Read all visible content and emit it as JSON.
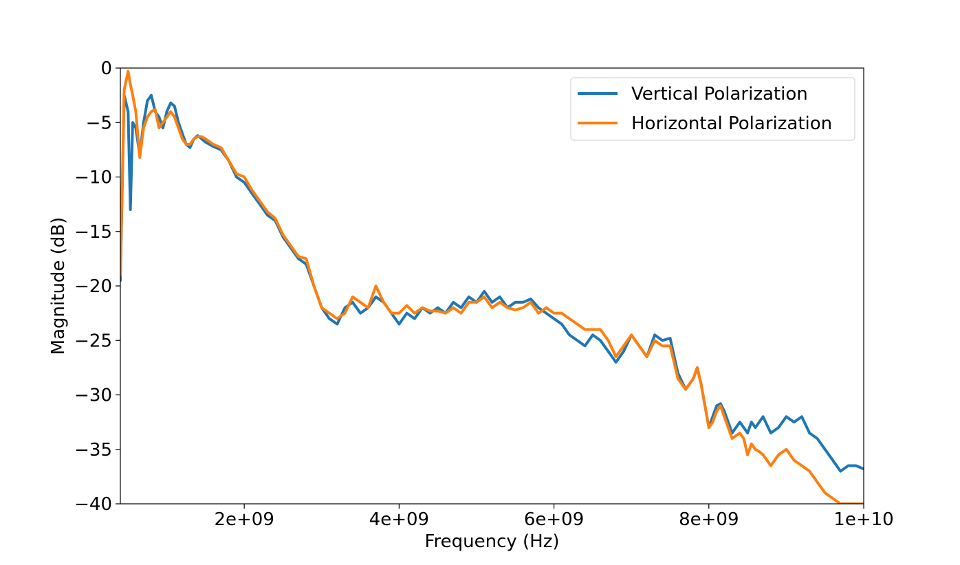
{
  "chart_data": {
    "type": "line",
    "title": "",
    "xlabel": "Frequency (Hz)",
    "ylabel": "Magnitude (dB)",
    "xlim": [
      400000000,
      10000000000
    ],
    "ylim": [
      -40,
      0
    ],
    "xticks": [
      2000000000,
      4000000000,
      6000000000,
      8000000000,
      10000000000
    ],
    "xtick_labels": [
      "2e+09",
      "4e+09",
      "6e+09",
      "8e+09",
      "1e+10"
    ],
    "yticks": [
      0,
      -5,
      -10,
      -15,
      -20,
      -25,
      -30,
      -35,
      -40
    ],
    "ytick_labels": [
      "0",
      "−5",
      "−10",
      "−15",
      "−20",
      "−25",
      "−30",
      "−35",
      "−40"
    ],
    "grid": false,
    "legend_position": "top-right",
    "series": [
      {
        "name": "Vertical Polarization",
        "color": "#1f77b4",
        "x": [
          400000000,
          450000000,
          500000000,
          530000000,
          560000000,
          600000000,
          650000000,
          700000000,
          750000000,
          800000000,
          850000000,
          900000000,
          950000000,
          1000000000,
          1050000000,
          1100000000,
          1150000000,
          1200000000,
          1250000000,
          1300000000,
          1350000000,
          1400000000,
          1450000000,
          1500000000,
          1600000000,
          1700000000,
          1800000000,
          1900000000,
          2000000000,
          2100000000,
          2200000000,
          2300000000,
          2400000000,
          2500000000,
          2600000000,
          2700000000,
          2800000000,
          2900000000,
          3000000000,
          3100000000,
          3200000000,
          3300000000,
          3400000000,
          3500000000,
          3600000000,
          3700000000,
          3800000000,
          3900000000,
          4000000000,
          4100000000,
          4200000000,
          4300000000,
          4400000000,
          4500000000,
          4600000000,
          4700000000,
          4800000000,
          4900000000,
          5000000000,
          5100000000,
          5200000000,
          5300000000,
          5400000000,
          5500000000,
          5600000000,
          5700000000,
          5800000000,
          5900000000,
          6000000000,
          6100000000,
          6200000000,
          6300000000,
          6400000000,
          6500000000,
          6600000000,
          6700000000,
          6800000000,
          6900000000,
          7000000000,
          7100000000,
          7200000000,
          7300000000,
          7400000000,
          7500000000,
          7600000000,
          7700000000,
          7800000000,
          7850000000,
          7900000000,
          8000000000,
          8050000000,
          8100000000,
          8150000000,
          8200000000,
          8300000000,
          8400000000,
          8450000000,
          8500000000,
          8550000000,
          8600000000,
          8650000000,
          8700000000,
          8800000000,
          8900000000,
          9000000000,
          9100000000,
          9200000000,
          9300000000,
          9400000000,
          9500000000,
          9600000000,
          9700000000,
          9800000000,
          9900000000,
          10000000000
        ],
        "y": [
          -19.5,
          -2.5,
          -4,
          -13,
          -5,
          -5.5,
          -8,
          -5,
          -3,
          -2.5,
          -4,
          -4.5,
          -5.5,
          -4,
          -3.2,
          -3.5,
          -5,
          -6,
          -7,
          -7.3,
          -6.5,
          -6.2,
          -6.5,
          -6.8,
          -7.2,
          -7.5,
          -8.5,
          -10,
          -10.5,
          -11.5,
          -12.5,
          -13.5,
          -14,
          -15.5,
          -16.5,
          -17.5,
          -18,
          -20,
          -22,
          -23,
          -23.5,
          -22,
          -21.5,
          -22.5,
          -22,
          -21,
          -21.5,
          -22.5,
          -23.5,
          -22.5,
          -23,
          -22,
          -22.5,
          -22,
          -22.5,
          -21.5,
          -22,
          -21,
          -21.5,
          -20.5,
          -21.5,
          -21,
          -22,
          -21.5,
          -21.5,
          -21.2,
          -22,
          -22.5,
          -23,
          -23.5,
          -24.5,
          -25,
          -25.5,
          -24.5,
          -25,
          -26,
          -27,
          -26,
          -24.5,
          -25.5,
          -26.5,
          -24.5,
          -25,
          -24.8,
          -28,
          -29.5,
          -28.5,
          -27.5,
          -29,
          -33,
          -32,
          -31,
          -30.8,
          -31.5,
          -33.5,
          -32.5,
          -33,
          -33.5,
          -32.5,
          -33,
          -32.5,
          -32,
          -33.5,
          -33,
          -32,
          -32.5,
          -32,
          -33.5,
          -34,
          -35,
          -36,
          -37,
          -36.5,
          -36.5,
          -36.8
        ]
      },
      {
        "name": "Horizontal Polarization",
        "color": "#ff7f0e",
        "x": [
          400000000,
          450000000,
          500000000,
          530000000,
          560000000,
          600000000,
          650000000,
          700000000,
          750000000,
          800000000,
          850000000,
          900000000,
          950000000,
          1000000000,
          1050000000,
          1100000000,
          1150000000,
          1200000000,
          1250000000,
          1300000000,
          1350000000,
          1400000000,
          1450000000,
          1500000000,
          1600000000,
          1700000000,
          1800000000,
          1900000000,
          2000000000,
          2100000000,
          2200000000,
          2300000000,
          2400000000,
          2500000000,
          2600000000,
          2700000000,
          2800000000,
          2900000000,
          3000000000,
          3100000000,
          3200000000,
          3300000000,
          3400000000,
          3500000000,
          3600000000,
          3700000000,
          3800000000,
          3900000000,
          4000000000,
          4100000000,
          4200000000,
          4300000000,
          4400000000,
          4500000000,
          4600000000,
          4700000000,
          4800000000,
          4900000000,
          5000000000,
          5100000000,
          5200000000,
          5300000000,
          5400000000,
          5500000000,
          5600000000,
          5700000000,
          5800000000,
          5900000000,
          6000000000,
          6100000000,
          6200000000,
          6300000000,
          6400000000,
          6500000000,
          6600000000,
          6700000000,
          6800000000,
          6900000000,
          7000000000,
          7100000000,
          7200000000,
          7300000000,
          7400000000,
          7500000000,
          7600000000,
          7700000000,
          7800000000,
          7850000000,
          7900000000,
          8000000000,
          8050000000,
          8100000000,
          8150000000,
          8200000000,
          8300000000,
          8400000000,
          8450000000,
          8500000000,
          8550000000,
          8600000000,
          8650000000,
          8700000000,
          8800000000,
          8900000000,
          9000000000,
          9100000000,
          9200000000,
          9300000000,
          9400000000,
          9500000000,
          9600000000,
          9700000000,
          9800000000,
          9900000000,
          10000000000
        ],
        "y": [
          -19,
          -2,
          -0.3,
          -1.5,
          -2.5,
          -4,
          -8.2,
          -5.5,
          -4.5,
          -4,
          -3.8,
          -5.5,
          -5,
          -4.5,
          -4,
          -4.5,
          -5.5,
          -6.5,
          -7,
          -7,
          -6.5,
          -6.3,
          -6.3,
          -6.5,
          -7,
          -7.3,
          -8.5,
          -9.7,
          -10,
          -11.2,
          -12.2,
          -13.2,
          -13.8,
          -15.3,
          -16.3,
          -17.3,
          -17.5,
          -20,
          -22,
          -22.5,
          -23,
          -22.5,
          -21,
          -21.5,
          -22,
          -20,
          -21.5,
          -22.5,
          -22.5,
          -21.8,
          -22.5,
          -22,
          -22.3,
          -22.3,
          -22.5,
          -22,
          -22.5,
          -21.5,
          -21.5,
          -21,
          -22,
          -21.5,
          -22,
          -22.2,
          -22,
          -21.5,
          -22.5,
          -22,
          -22.5,
          -22.5,
          -23,
          -23.5,
          -24,
          -24,
          -24,
          -25,
          -26.5,
          -25.5,
          -24.5,
          -25.5,
          -26.5,
          -25,
          -25.5,
          -25.5,
          -28.5,
          -29.5,
          -28.5,
          -27.5,
          -29,
          -33,
          -32.5,
          -31.5,
          -31,
          -32,
          -34,
          -33.5,
          -34,
          -35.5,
          -34.5,
          -35,
          -35.2,
          -35.5,
          -36.5,
          -35.5,
          -35,
          -36,
          -36.5,
          -37,
          -38,
          -39,
          -39.5,
          -40,
          -40,
          -40,
          -40
        ]
      }
    ]
  }
}
